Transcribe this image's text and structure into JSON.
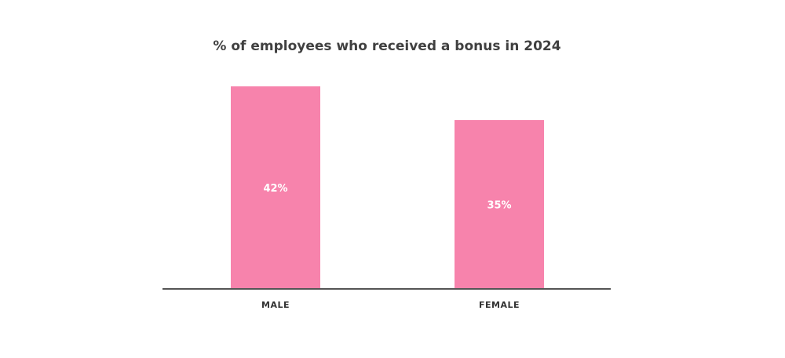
{
  "chart_data": {
    "type": "bar",
    "title": "% of employees who received a bonus in 2024",
    "categories": [
      "MALE",
      "FEMALE"
    ],
    "values": [
      42,
      35
    ],
    "value_labels": [
      "42%",
      "35%"
    ],
    "ylim": [
      0,
      42
    ],
    "grid": false,
    "legend": "none",
    "bar_color": "#f783ac",
    "axis_color": "#555555"
  }
}
